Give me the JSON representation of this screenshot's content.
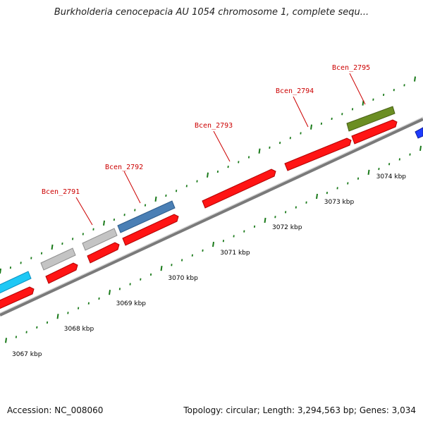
{
  "title": "Burkholderia cenocepacia AU 1054 chromosome 1, complete sequ...",
  "footer": {
    "accession": "Accession: NC_008060",
    "stats": "Topology: circular; Length: 3,294,563 bp; Genes: 3,034"
  },
  "colors": {
    "backbone": "#8c8c8c",
    "tick": "#1a7a1a",
    "cds_red": "#ff1414",
    "gene_gray": "#bdbdbd",
    "gene_cyan": "#1ec8f5",
    "gene_steel": "#4a7fb5",
    "gene_olive": "#6b8e23",
    "gene_blue": "#1e3cff",
    "label_red": "#cc0000"
  },
  "ruler": {
    "labels": [
      "3067 kbp",
      "3068 kbp",
      "3069 kbp",
      "3070 kbp",
      "3071 kbp",
      "3072 kbp",
      "3073 kbp",
      "3074 kbp"
    ]
  },
  "gene_labels": [
    "Bcen_2791",
    "Bcen_2792",
    "Bcen_2793",
    "Bcen_2794",
    "Bcen_2795"
  ]
}
